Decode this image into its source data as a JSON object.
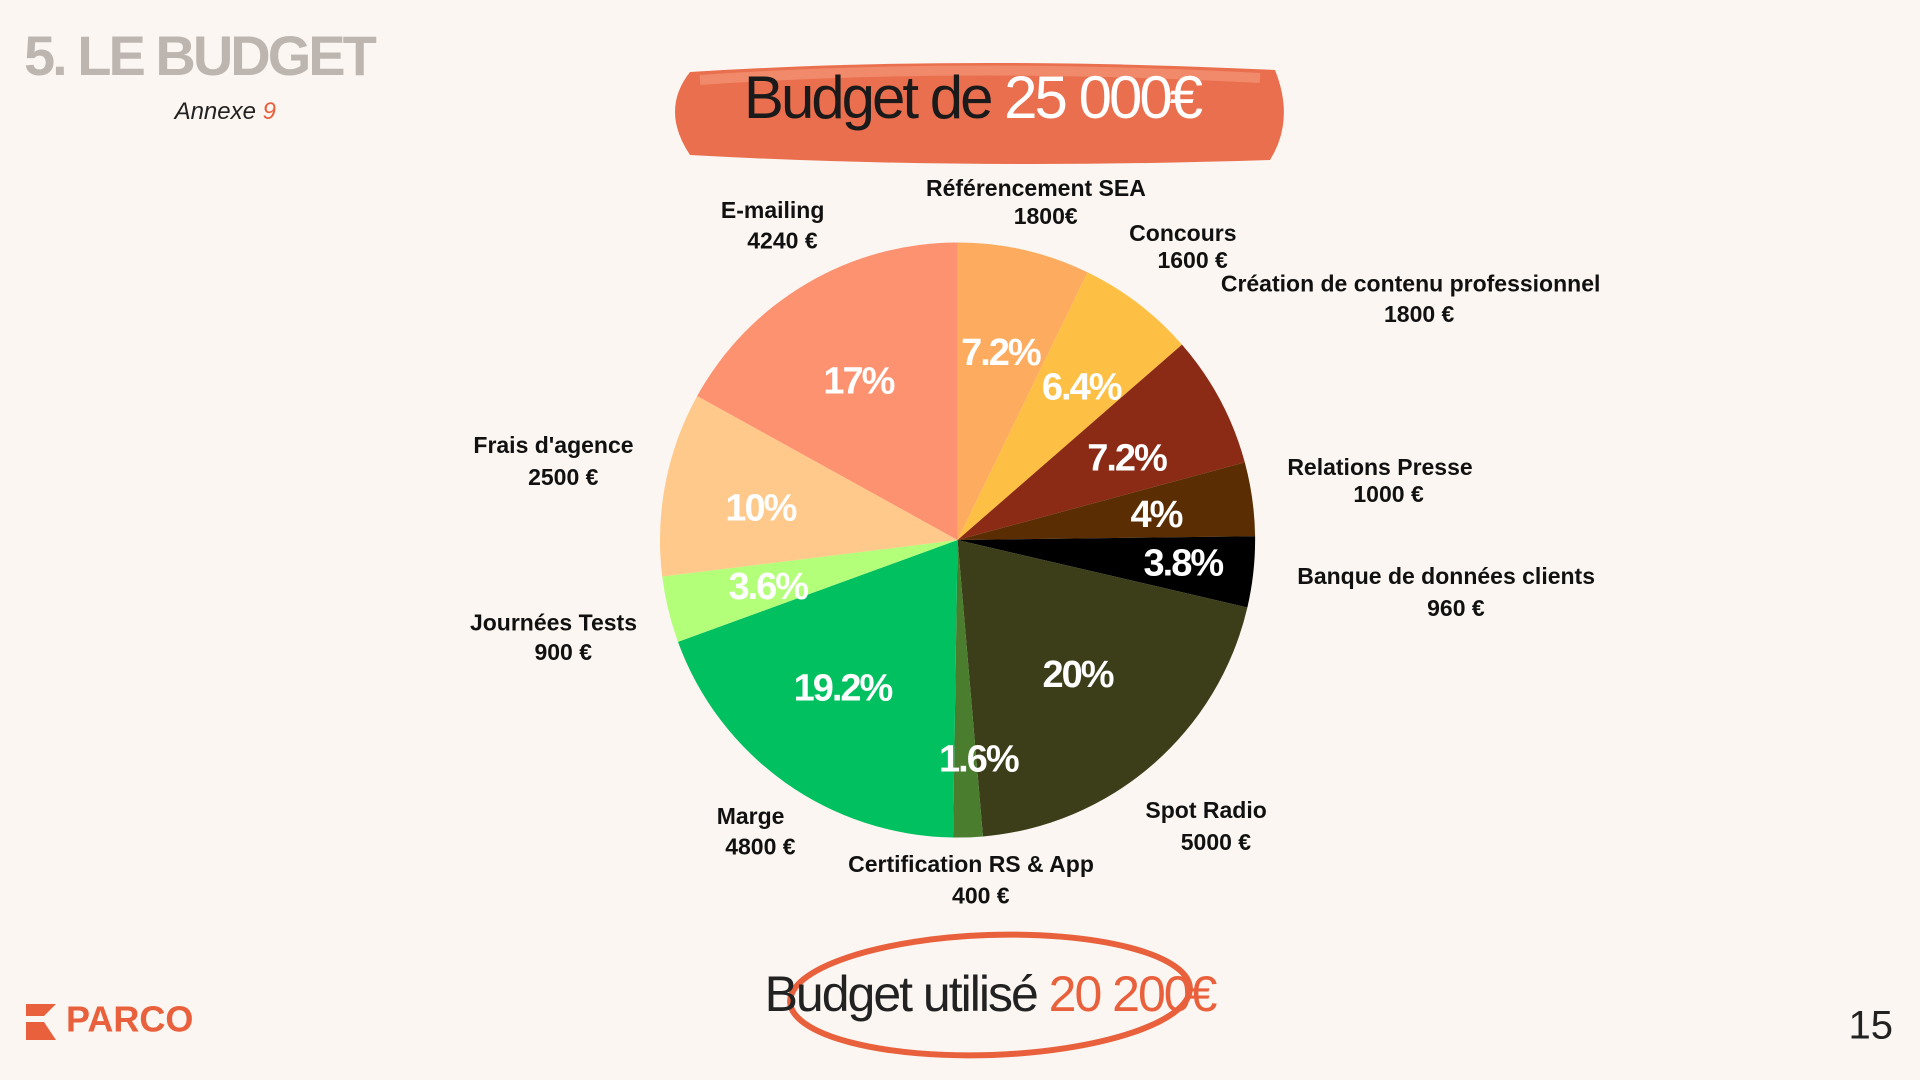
{
  "header": {
    "section": "5. LE BUDGET",
    "annex_label": "Annexe",
    "annex_number": "9",
    "page_number": "15",
    "logo": "PARCO"
  },
  "title": {
    "prefix": "Budget de",
    "amount": "25 000€"
  },
  "footer": {
    "prefix": "Budget utilisé",
    "amount": "20 200€"
  },
  "chart_data": {
    "type": "pie",
    "categories": [
      "Référencement SEA",
      "Concours",
      "Création de contenu professionnel",
      "Relations Presse",
      "Banque de données clients",
      "Spot Radio",
      "Certification RS & App",
      "Marge",
      "Journées Tests",
      "Frais d'agence",
      "E-mailing"
    ],
    "values": [
      1800,
      1600,
      1800,
      1000,
      960,
      5000,
      400,
      4800,
      900,
      2500,
      4240
    ],
    "value_labels": [
      "1800€",
      "1600 €",
      "1800 €",
      "1000 €",
      "960 €",
      "5000 €",
      "400 €",
      "4800 €",
      "900 €",
      "2500 €",
      "4240 €"
    ],
    "percent_labels": [
      "7.2%",
      "6.4%",
      "7.2%",
      "4%",
      "3.8%",
      "20%",
      "1.6%",
      "19.2%",
      "3.6%",
      "10%",
      "17%"
    ],
    "colors": [
      "#fdab5e",
      "#fdc044",
      "#8b2b16",
      "#5a2e02",
      "#000000",
      "#3c3e1a",
      "#4a7d2e",
      "#00c060",
      "#b4ff7a",
      "#fec98b",
      "#fd9271"
    ]
  }
}
